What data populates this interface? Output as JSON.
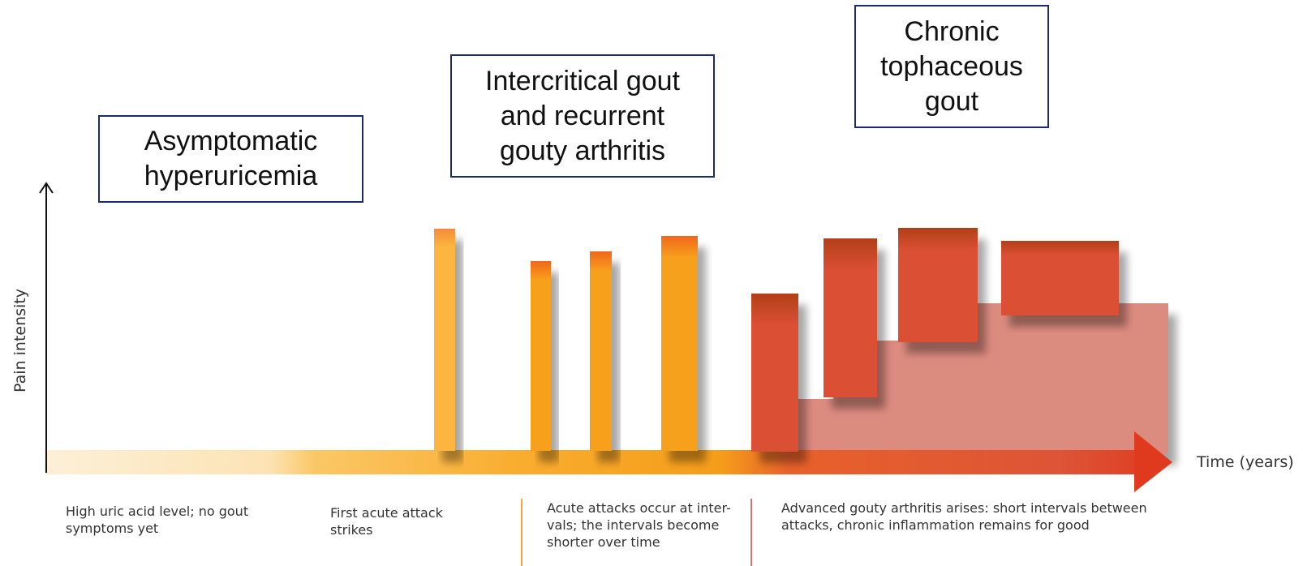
{
  "stages": {
    "asymptomatic": "Asymptomatic\nhyperuricemia",
    "intercritical": "Intercritical gout\nand recurrent\ngouty arthritis",
    "chronic": "Chronic\ntophaceous\ngout"
  },
  "axes": {
    "y_label": "Pain intensity",
    "x_label": "Time (years)"
  },
  "descriptions": {
    "d1": "High uric acid level; no gout\nsymptoms yet",
    "d2": "First acute attack\nstrikes",
    "d3": "Acute attacks occur at inter-\nvals; the intervals become\nshorter over time",
    "d4": "Advanced gouty arthritis arises: short intervals between\nattacks, chronic inflammation remains for good"
  },
  "colors": {
    "box_border": "#1f2a6b",
    "arrow_start": "#fdf0d8",
    "arrow_mid": "#f5a01a",
    "arrow_end": "#e03a1e",
    "attack_yellow": "#fbb53f",
    "attack_orange": "#f7a01c",
    "attack_red": "#db5036",
    "chronic_fill": "#dc8b7f",
    "divider_yellow": "#fbbf5e",
    "divider_orange": "#f5a53a",
    "divider_red": "#e07060"
  }
}
